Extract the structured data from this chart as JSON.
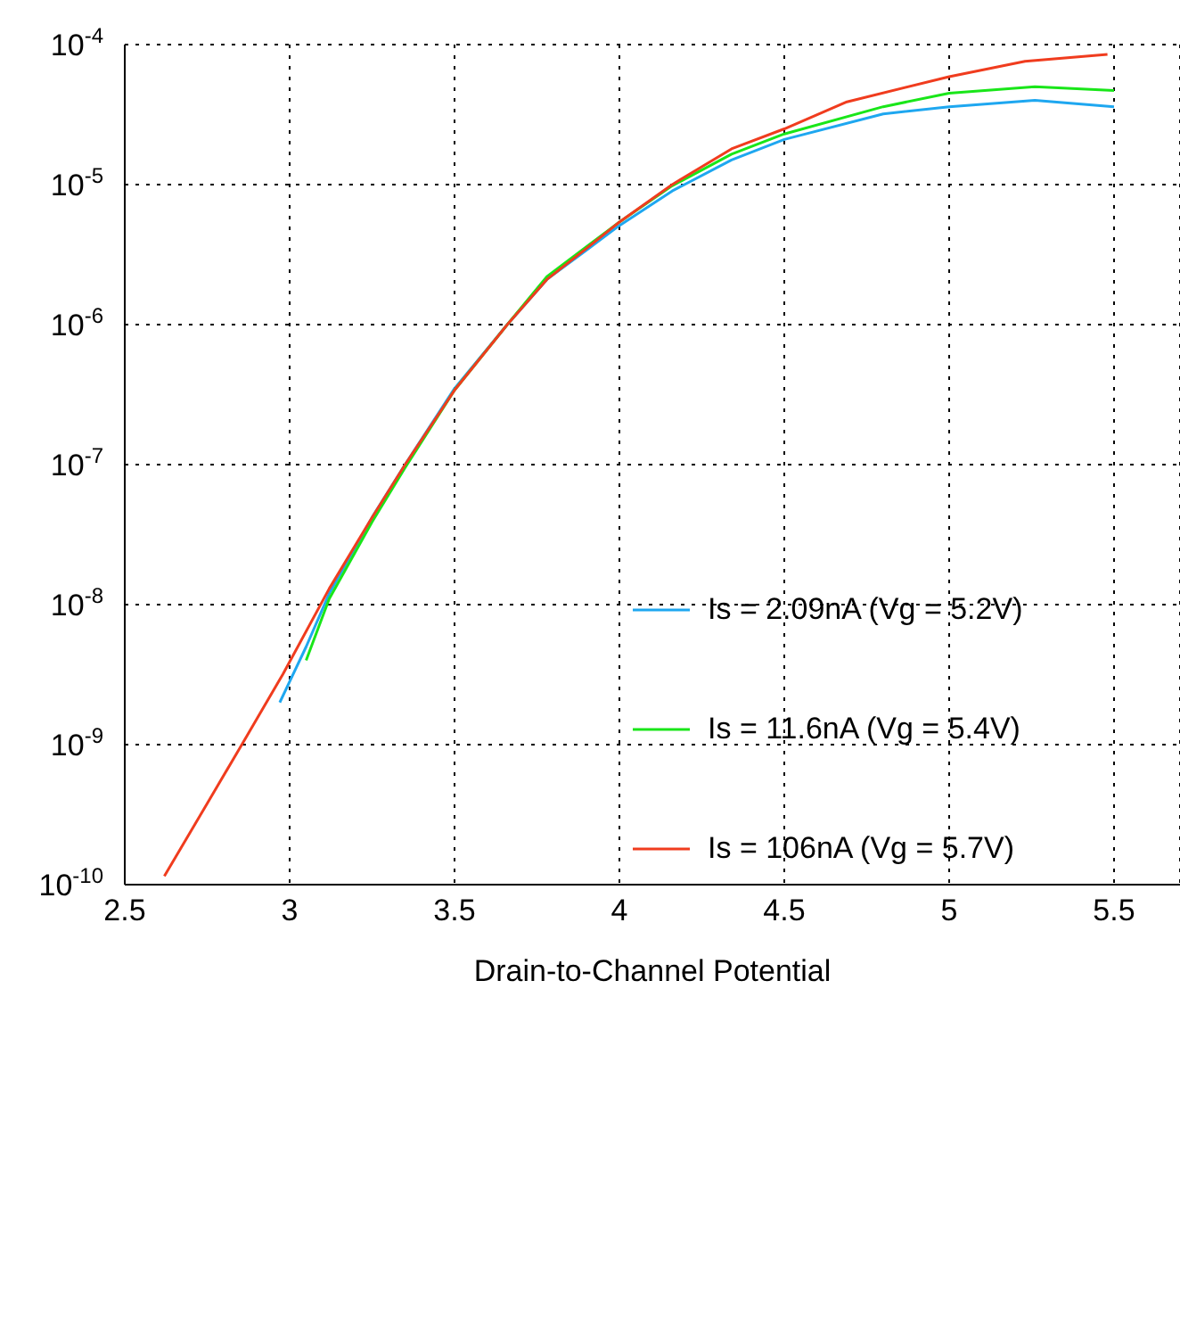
{
  "chart_data": {
    "type": "line",
    "xlabel": "Drain-to-Channel Potential",
    "log": "y",
    "grid": true,
    "legend": "right",
    "line_style": "solid",
    "marker": "none",
    "xlim": [
      2.5,
      5.7
    ],
    "xticks": [
      2.5,
      3,
      3.5,
      4,
      4.5,
      5,
      5.5
    ],
    "ylim": [
      1e-10,
      0.0001
    ],
    "yticks": [
      {
        "value": 1e-10,
        "label": "10$^{-10}$"
      },
      {
        "value": 1e-09,
        "label": "10$^{-9}$"
      },
      {
        "value": 1e-08,
        "label": "10$^{-8}$"
      },
      {
        "value": 1e-07,
        "label": "10$^{-7}$"
      },
      {
        "value": 1e-06,
        "label": "10$^{-6}$"
      },
      {
        "value": 1e-05,
        "label": "10$^{-5}$"
      },
      {
        "value": 0.0001,
        "label": "10$^{-4}$"
      }
    ],
    "series": [
      {
        "name": "Is = 2.09nA (Vg = 5.2V)",
        "color": "#1ea7f0",
        "x": [
          2.97,
          3.05,
          3.12,
          3.25,
          3.35,
          3.5,
          3.66,
          3.78,
          3.9,
          4.0,
          4.16,
          4.34,
          4.5,
          4.8,
          5.0,
          5.26,
          5.5
        ],
        "values": [
          2e-09,
          5e-09,
          1.2e-08,
          4.2e-08,
          1e-07,
          3.5e-07,
          1e-06,
          2.1e-06,
          3.4e-06,
          5.1e-06,
          9e-06,
          1.5e-05,
          2.1e-05,
          3.2e-05,
          3.6e-05,
          4e-05,
          3.6e-05
        ]
      },
      {
        "name": "Is = 11.6nA (Vg = 5.4V)",
        "color": "#19e619",
        "x": [
          3.05,
          3.12,
          3.25,
          3.35,
          3.5,
          3.66,
          3.78,
          3.9,
          4.0,
          4.16,
          4.34,
          4.5,
          4.8,
          5.0,
          5.26,
          5.5
        ],
        "values": [
          4e-09,
          1.1e-08,
          3.9e-08,
          9.5e-08,
          3.4e-07,
          1e-06,
          2.2e-06,
          3.6e-06,
          5.4e-06,
          9.8e-06,
          1.65e-05,
          2.3e-05,
          3.6e-05,
          4.5e-05,
          5e-05,
          4.7e-05
        ]
      },
      {
        "name": "Is = 106nA (Vg = 5.7V)",
        "color": "#f03c1e",
        "x": [
          2.62,
          2.75,
          2.855,
          2.98,
          3.12,
          3.25,
          3.35,
          3.5,
          3.66,
          3.78,
          3.9,
          4.0,
          4.16,
          4.34,
          4.5,
          4.69,
          5.0,
          5.23,
          5.48
        ],
        "values": [
          1.15e-10,
          3.8e-10,
          1e-09,
          3.2e-09,
          1.3e-08,
          4.2e-08,
          1e-07,
          3.4e-07,
          1e-06,
          2.1e-06,
          3.5e-06,
          5.4e-06,
          1e-05,
          1.8e-05,
          2.5e-05,
          3.9e-05,
          5.9e-05,
          7.6e-05,
          8.5e-05
        ]
      }
    ]
  }
}
